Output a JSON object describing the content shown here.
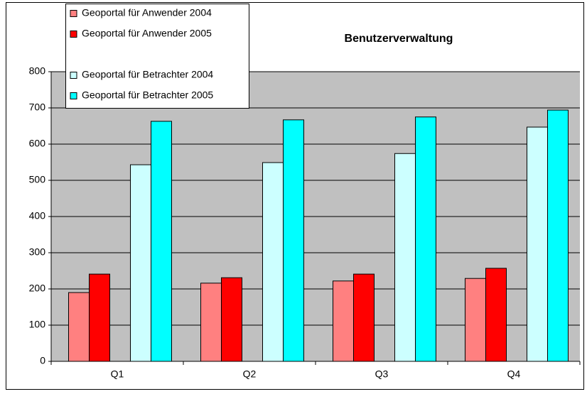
{
  "chart_data": {
    "type": "bar",
    "title": "Benutzerverwaltung",
    "categories": [
      "Q1",
      "Q2",
      "Q3",
      "Q4"
    ],
    "series": [
      {
        "name": "Geoportal für Anwender 2004",
        "color": "#ff8080",
        "values": [
          190,
          216,
          222,
          229
        ]
      },
      {
        "name": "Geoportal für Anwender 2005",
        "color": "#ff0000",
        "values": [
          241,
          231,
          241,
          257
        ]
      },
      {
        "name": "Geoportal für Betrachter 2004",
        "color": "#ccffff",
        "values": [
          543,
          549,
          574,
          647
        ]
      },
      {
        "name": "Geoportal für Betrachter 2005",
        "color": "#00ffff",
        "values": [
          663,
          667,
          675,
          694
        ]
      }
    ],
    "ylim": [
      0,
      800
    ],
    "yticks": [
      0,
      100,
      200,
      300,
      400,
      500,
      600,
      700,
      800
    ],
    "grid": true,
    "legend": "top-left",
    "background": "#c0c0c0"
  }
}
